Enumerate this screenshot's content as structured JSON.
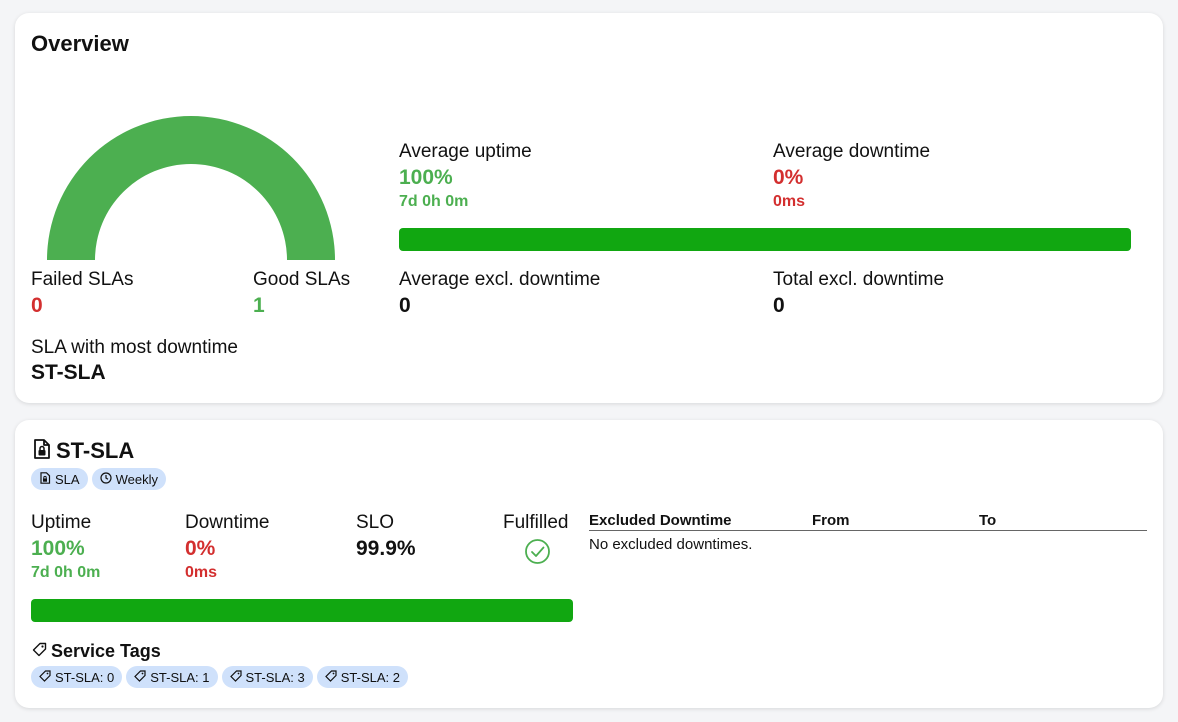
{
  "overview": {
    "title": "Overview",
    "gauge": {
      "good_fraction": 1.0,
      "color": "#4caf50"
    },
    "failed_slas": {
      "label": "Failed SLAs",
      "value": "0"
    },
    "good_slas": {
      "label": "Good SLAs",
      "value": "1"
    },
    "most_downtime": {
      "label": "SLA with most downtime",
      "value": "ST-SLA"
    },
    "avg_uptime": {
      "label": "Average uptime",
      "value": "100%",
      "sub": "7d 0h 0m"
    },
    "avg_downtime": {
      "label": "Average downtime",
      "value": "0%",
      "sub": "0ms"
    },
    "uptime_bar_fraction": 1.0,
    "avg_excl_downtime": {
      "label": "Average excl. downtime",
      "value": "0"
    },
    "total_excl_downtime": {
      "label": "Total excl. downtime",
      "value": "0"
    }
  },
  "sla": {
    "title": "ST-SLA",
    "badges": [
      {
        "icon": "document-lock-icon",
        "label": "SLA"
      },
      {
        "icon": "clock-icon",
        "label": "Weekly"
      }
    ],
    "uptime": {
      "label": "Uptime",
      "value": "100%",
      "sub": "7d 0h 0m"
    },
    "downtime": {
      "label": "Downtime",
      "value": "0%",
      "sub": "0ms"
    },
    "slo": {
      "label": "SLO",
      "value": "99.9%"
    },
    "fulfilled": {
      "label": "Fulfilled",
      "icon": "check-circle-icon"
    },
    "uptime_bar_fraction": 1.0,
    "excluded_table": {
      "headers": [
        "Excluded Downtime",
        "From",
        "To"
      ],
      "empty_text": "No excluded downtimes."
    },
    "service_tags": {
      "title": "Service Tags",
      "items": [
        "ST-SLA: 0",
        "ST-SLA: 1",
        "ST-SLA: 3",
        "ST-SLA: 2"
      ]
    }
  },
  "colors": {
    "good": "#4caf50",
    "bad": "#d32f2f",
    "bar": "#11a711",
    "badge_bg": "#cfe1fb"
  }
}
